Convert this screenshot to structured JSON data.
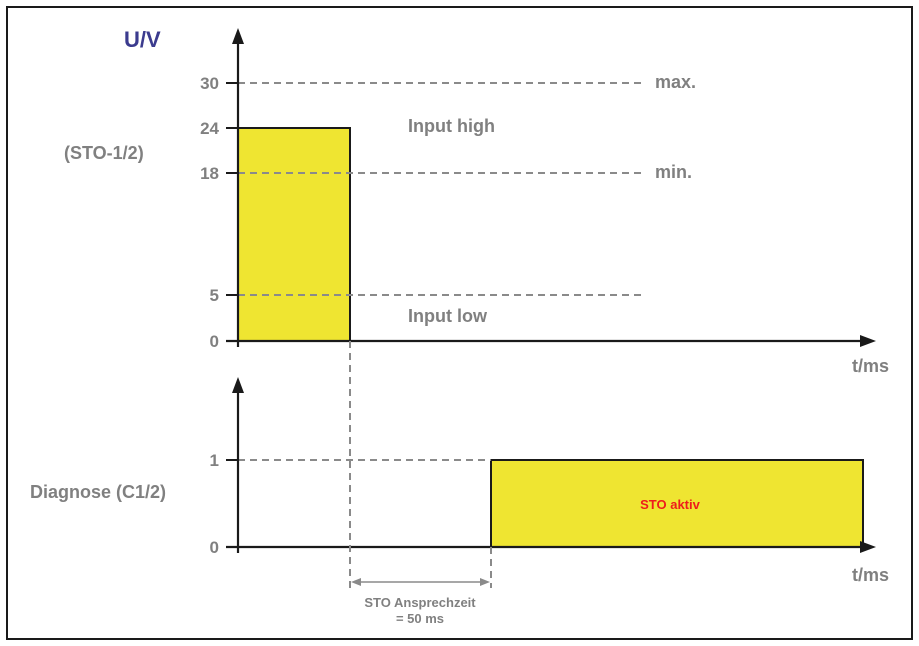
{
  "top_chart": {
    "y_axis_title": "U/V",
    "signal_label": "(STO-1/2)",
    "x_axis_label": "t/ms",
    "y_ticks": [
      "30",
      "24",
      "18",
      "5",
      "0"
    ],
    "max_label": "max.",
    "min_label": "min.",
    "input_high_label": "Input high",
    "input_low_label": "Input low"
  },
  "bottom_chart": {
    "signal_label": "Diagnose (C1/2)",
    "x_axis_label": "t/ms",
    "y_ticks": [
      "1",
      "0"
    ],
    "state_label": "STO aktiv"
  },
  "response_time": {
    "line1": "STO Ansprechzeit",
    "line2": "= 50 ms"
  },
  "colors": {
    "pulse_fill": "#efe531",
    "title": "#3b3b8e",
    "state_text": "#ee1c1c",
    "labels": "#808080"
  }
}
